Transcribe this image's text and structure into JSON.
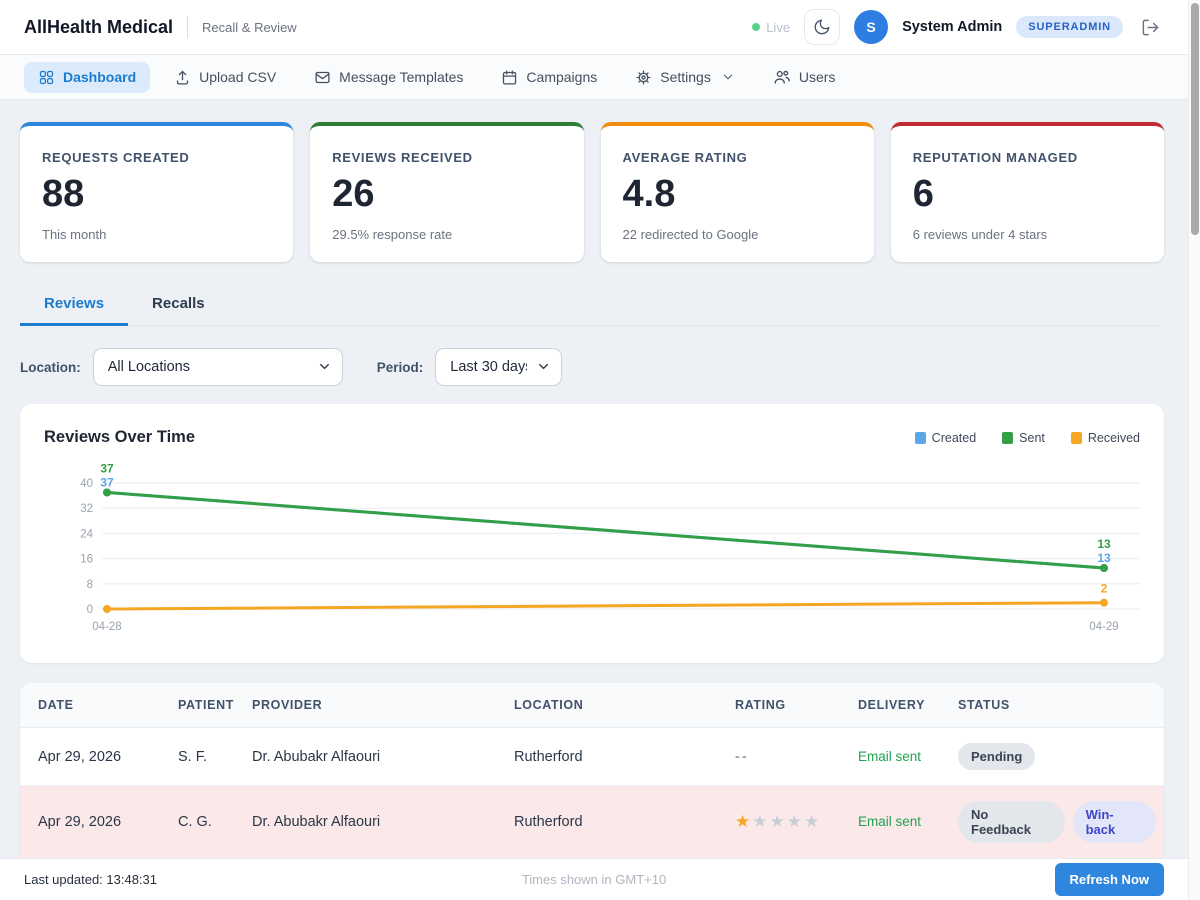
{
  "header": {
    "brand": "AllHealth Medical",
    "subtitle": "Recall & Review",
    "live_label": "Live",
    "user_initial": "S",
    "user_name": "System Admin",
    "role_badge": "SUPERADMIN"
  },
  "nav": {
    "items": [
      {
        "label": "Dashboard",
        "icon": "grid",
        "active": true,
        "has_chevron": false
      },
      {
        "label": "Upload CSV",
        "icon": "upload",
        "active": false,
        "has_chevron": false
      },
      {
        "label": "Message Templates",
        "icon": "envelope",
        "active": false,
        "has_chevron": false
      },
      {
        "label": "Campaigns",
        "icon": "calendar",
        "active": false,
        "has_chevron": false
      },
      {
        "label": "Settings",
        "icon": "gear",
        "active": false,
        "has_chevron": true
      },
      {
        "label": "Users",
        "icon": "users",
        "active": false,
        "has_chevron": false
      }
    ]
  },
  "stats": [
    {
      "title": "REQUESTS CREATED",
      "value": "88",
      "subtitle": "This month",
      "accent": "#2d87dd"
    },
    {
      "title": "REVIEWS RECEIVED",
      "value": "26",
      "subtitle": "29.5% response rate",
      "accent": "#2e7d32"
    },
    {
      "title": "AVERAGE RATING",
      "value": "4.8",
      "subtitle": "22 redirected to Google",
      "accent": "#f18c0f"
    },
    {
      "title": "REPUTATION MANAGED",
      "value": "6",
      "subtitle": "6 reviews under 4 stars",
      "accent": "#c02b33"
    }
  ],
  "tabs": [
    {
      "label": "Reviews",
      "active": true
    },
    {
      "label": "Recalls",
      "active": false
    }
  ],
  "filters": {
    "location_label": "Location:",
    "location_value": "All Locations",
    "period_label": "Period:",
    "period_value": "Last 30 days"
  },
  "chart_data": {
    "type": "line",
    "title": "Reviews Over Time",
    "x": [
      "04-28",
      "04-29"
    ],
    "series": [
      {
        "name": "Created",
        "color": "#5ba7ea",
        "values": [
          37,
          13
        ]
      },
      {
        "name": "Sent",
        "color": "#34a046",
        "values": [
          37,
          13
        ]
      },
      {
        "name": "Received",
        "color": "#f5a623",
        "values": [
          0,
          2
        ]
      }
    ],
    "ylim": [
      0,
      40
    ],
    "yticks": [
      0,
      8,
      16,
      24,
      32,
      40
    ],
    "grid": true,
    "legend_position": "top-right"
  },
  "table": {
    "columns": [
      "DATE",
      "PATIENT",
      "PROVIDER",
      "LOCATION",
      "RATING",
      "DELIVERY",
      "STATUS"
    ],
    "rows": [
      {
        "date": "Apr 29, 2026",
        "patient": "S. F.",
        "provider": "Dr. Abubakr Alfaouri",
        "location": "Rutherford",
        "rating": "--",
        "delivery": "Email sent",
        "statuses": [
          {
            "label": "Pending",
            "style": "gray"
          }
        ],
        "highlight": false
      },
      {
        "date": "Apr 29, 2026",
        "patient": "C. G.",
        "provider": "Dr. Abubakr Alfaouri",
        "location": "Rutherford",
        "rating": 1,
        "delivery": "Email sent",
        "statuses": [
          {
            "label": "No Feedback",
            "style": "gray"
          },
          {
            "label": "Win-back",
            "style": "indigo"
          }
        ],
        "highlight": true
      }
    ]
  },
  "footer": {
    "last_updated": "Last updated: 13:48:31",
    "timezone_note": "Times shown in GMT+10",
    "refresh_label": "Refresh Now"
  }
}
